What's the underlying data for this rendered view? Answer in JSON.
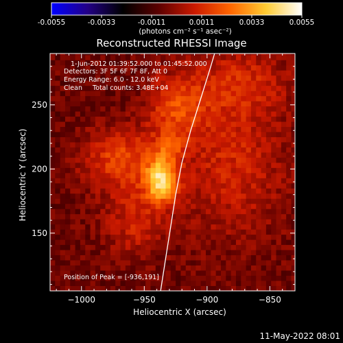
{
  "colorbar": {
    "ticks": [
      "-0.0055",
      "-0.0033",
      "-0.0011",
      "0.0011",
      "0.0033",
      "0.0055"
    ],
    "unit_text": "(photons cm⁻² s⁻¹ asec⁻²)"
  },
  "info": {
    "time_range": "1-Jun-2012 01:39:52.000 to 01:45:52.000",
    "detectors": "Detectors: 3F 5F 6F 7F 8F, Att 0",
    "energy": "Energy Range: 6.0 - 12.0 keV",
    "method_counts": "Clean     Total counts: 3.48E+04",
    "peak": "Position of Peak = [-936,191]"
  },
  "timestamp": "11-May-2022 08:01",
  "chart_data": {
    "type": "heatmap",
    "title": "Reconstructed RHESSI Image",
    "xlabel": "Heliocentric X (arcsec)",
    "ylabel": "Heliocentric Y (arcsec)",
    "xlim": [
      -1025,
      -830
    ],
    "ylim": [
      105,
      290
    ],
    "x_ticks": [
      -1000,
      -950,
      -900,
      -850
    ],
    "x_tick_labels": [
      "−1000",
      "−950",
      "−900",
      "−850"
    ],
    "y_ticks": [
      150,
      200,
      250
    ],
    "y_tick_labels": [
      "150",
      "200",
      "250"
    ],
    "color_range": [
      -0.0055,
      0.0055
    ],
    "colormap": [
      "#0000ff",
      "#230087",
      "#000000",
      "#5c0000",
      "#cc1a00",
      "#ff6600",
      "#ffcc33",
      "#ffffff"
    ],
    "peak_position": [
      -936,
      191
    ],
    "limb_curve": [
      [
        -937,
        105
      ],
      [
        -933,
        130
      ],
      [
        -929,
        155
      ],
      [
        -925,
        180
      ],
      [
        -920,
        205
      ],
      [
        -913,
        230
      ],
      [
        -905,
        255
      ],
      [
        -897,
        280
      ],
      [
        -894,
        290
      ]
    ],
    "sources": [
      {
        "x": -936,
        "y": 191,
        "sx": 9,
        "sy": 12,
        "amp": 0.0046
      },
      {
        "x": -930,
        "y": 218,
        "sx": 7,
        "sy": 8,
        "amp": 0.0016
      },
      {
        "x": -968,
        "y": 208,
        "sx": 22,
        "sy": 16,
        "amp": 0.0022
      },
      {
        "x": -925,
        "y": 248,
        "sx": 16,
        "sy": 18,
        "amp": 0.002
      },
      {
        "x": -880,
        "y": 205,
        "sx": 30,
        "sy": 40,
        "amp": 0.0015
      },
      {
        "x": -958,
        "y": 160,
        "sx": 18,
        "sy": 20,
        "amp": 0.0014
      },
      {
        "x": -875,
        "y": 268,
        "sx": 28,
        "sy": 18,
        "amp": 0.0014
      }
    ],
    "background_level": -0.0006
  }
}
